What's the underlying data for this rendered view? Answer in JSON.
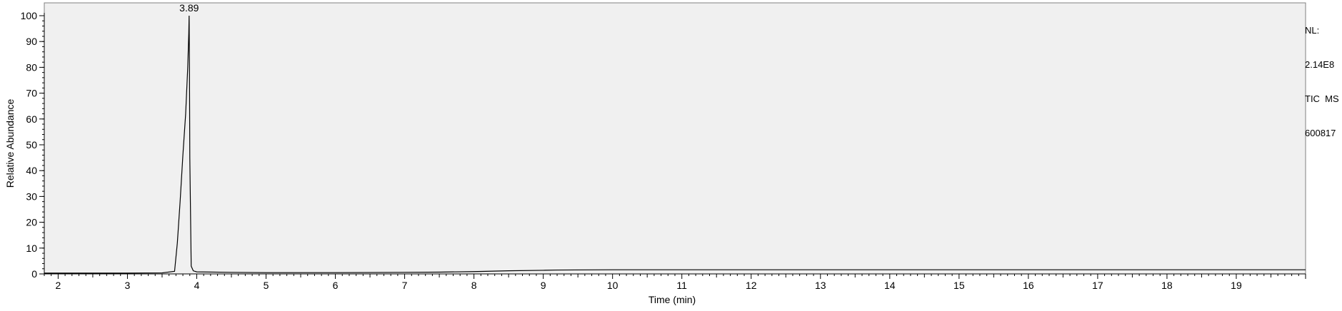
{
  "chart_data": {
    "type": "line",
    "title": "",
    "xlabel": "Time (min)",
    "ylabel": "Relative Abundance",
    "xlim": [
      1.8,
      20.0
    ],
    "ylim": [
      0,
      100
    ],
    "x_ticks": [
      2,
      3,
      4,
      5,
      6,
      7,
      8,
      9,
      10,
      11,
      12,
      13,
      14,
      15,
      16,
      17,
      18,
      19
    ],
    "y_ticks": [
      0,
      10,
      20,
      30,
      40,
      50,
      60,
      70,
      80,
      90,
      100
    ],
    "grid": false,
    "background": "#f0f0f0",
    "line_color": "#000000",
    "series": [
      {
        "x": [
          1.8,
          2.5,
          3.0,
          3.5,
          3.68,
          3.72,
          3.76,
          3.8,
          3.84,
          3.87,
          3.885,
          3.89,
          3.895,
          3.9,
          3.92,
          3.95,
          4.0,
          4.5,
          5.0,
          6.0,
          7.0,
          7.5,
          8.0,
          8.5,
          9.0,
          9.2,
          10.0,
          12.0,
          15.0,
          18.0,
          20.0
        ],
        "y": [
          0.3,
          0.3,
          0.3,
          0.4,
          1.0,
          12.0,
          28.0,
          46.0,
          62.0,
          80.0,
          93.0,
          100.0,
          80.0,
          45.0,
          3.0,
          1.2,
          0.8,
          0.6,
          0.5,
          0.5,
          0.6,
          0.7,
          0.9,
          1.2,
          1.4,
          1.5,
          1.6,
          1.6,
          1.6,
          1.6,
          1.6
        ]
      }
    ],
    "annotations": [
      {
        "x": 3.89,
        "y": 100,
        "text": "3.89"
      }
    ]
  },
  "info": {
    "nl_label": "NL:",
    "nl_value": "2.14E8",
    "scan_type": "TIC  MS",
    "file": "600817"
  }
}
